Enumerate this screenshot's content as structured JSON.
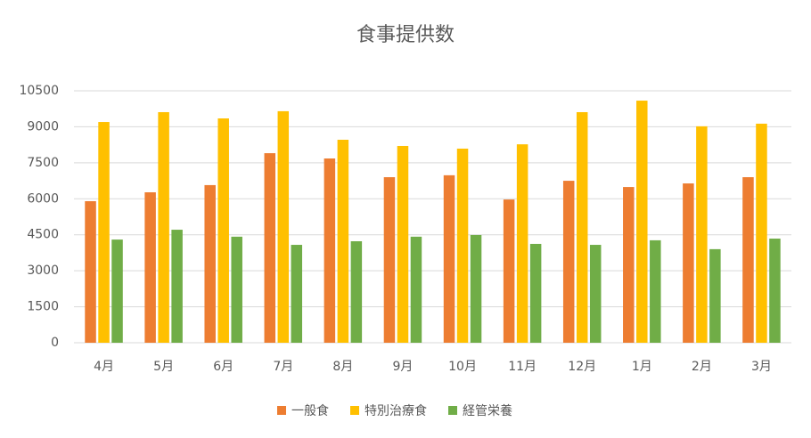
{
  "chart_data": {
    "type": "bar",
    "title": "食事提供数",
    "categories": [
      "4月",
      "5月",
      "6月",
      "7月",
      "8月",
      "9月",
      "10月",
      "11月",
      "12月",
      "1月",
      "2月",
      "3月"
    ],
    "series": [
      {
        "name": "一般食",
        "color": "#ed7d31",
        "values": [
          5900,
          6270,
          6570,
          7900,
          7680,
          6900,
          6980,
          5970,
          6750,
          6490,
          6640,
          6900
        ]
      },
      {
        "name": "特別治療食",
        "color": "#ffc000",
        "values": [
          9200,
          9610,
          9350,
          9650,
          8460,
          8200,
          8090,
          8270,
          9610,
          10090,
          9020,
          9130
        ]
      },
      {
        "name": "経管栄養",
        "color": "#70ad47",
        "values": [
          4300,
          4710,
          4420,
          4080,
          4230,
          4420,
          4490,
          4120,
          4080,
          4270,
          3900,
          4340
        ]
      }
    ],
    "ylim": [
      0,
      10500
    ],
    "yticks": [
      0,
      1500,
      3000,
      4500,
      6000,
      7500,
      9000,
      10500
    ],
    "grid": true,
    "legend": "bottom"
  }
}
